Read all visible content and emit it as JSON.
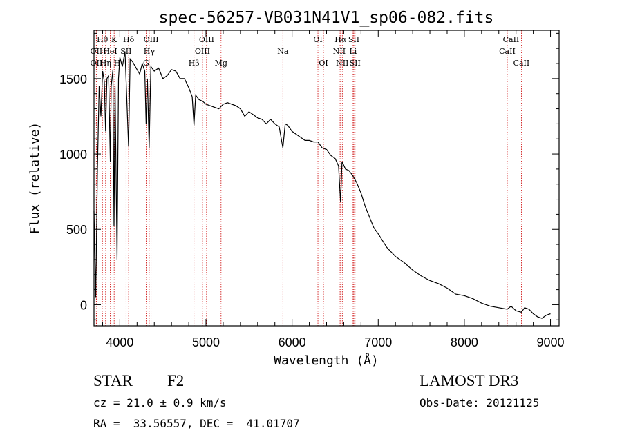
{
  "chart_data": {
    "type": "line",
    "title": "spec-56257-VB031N41V1_sp06-082.fits",
    "xlabel": "Wavelength (Å)",
    "ylabel": "Flux (relative)",
    "xlim": [
      3700,
      9100
    ],
    "ylim": [
      -140,
      1820
    ],
    "xticks": [
      4000,
      5000,
      6000,
      7000,
      8000,
      9000
    ],
    "yticks": [
      0,
      500,
      1000,
      1500
    ],
    "grid": false,
    "series": [
      {
        "name": "spectrum",
        "x": [
          3700,
          3720,
          3740,
          3760,
          3780,
          3800,
          3820,
          3835,
          3850,
          3870,
          3889,
          3900,
          3920,
          3933,
          3945,
          3968,
          3985,
          4000,
          4030,
          4060,
          4101,
          4120,
          4150,
          4180,
          4200,
          4230,
          4260,
          4290,
          4305,
          4320,
          4340,
          4360,
          4400,
          4450,
          4500,
          4550,
          4600,
          4650,
          4700,
          4750,
          4800,
          4840,
          4861,
          4880,
          4920,
          4960,
          5000,
          5050,
          5100,
          5150,
          5200,
          5250,
          5300,
          5350,
          5400,
          5450,
          5500,
          5550,
          5600,
          5650,
          5700,
          5750,
          5800,
          5850,
          5893,
          5920,
          5950,
          6000,
          6050,
          6100,
          6150,
          6200,
          6250,
          6300,
          6350,
          6400,
          6450,
          6500,
          6540,
          6563,
          6580,
          6620,
          6660,
          6700,
          6750,
          6800,
          6850,
          6900,
          6950,
          7000,
          7100,
          7200,
          7300,
          7400,
          7500,
          7600,
          7700,
          7800,
          7900,
          8000,
          8100,
          8200,
          8300,
          8400,
          8498,
          8542,
          8600,
          8662,
          8700,
          8750,
          8800,
          8850,
          8900,
          8950,
          9000
        ],
        "values": [
          620,
          50,
          900,
          1450,
          1250,
          1550,
          1480,
          1150,
          1500,
          1520,
          950,
          1450,
          1560,
          520,
          1450,
          300,
          1500,
          1640,
          1580,
          1680,
          1050,
          1630,
          1610,
          1580,
          1560,
          1530,
          1600,
          1550,
          1200,
          1500,
          1040,
          1580,
          1550,
          1570,
          1500,
          1520,
          1560,
          1550,
          1500,
          1500,
          1440,
          1380,
          1190,
          1390,
          1360,
          1350,
          1330,
          1320,
          1310,
          1300,
          1330,
          1340,
          1330,
          1320,
          1300,
          1250,
          1280,
          1260,
          1240,
          1230,
          1200,
          1230,
          1200,
          1180,
          1040,
          1200,
          1190,
          1150,
          1130,
          1110,
          1090,
          1090,
          1080,
          1080,
          1040,
          1030,
          990,
          970,
          920,
          680,
          950,
          900,
          890,
          860,
          810,
          740,
          650,
          580,
          510,
          470,
          380,
          320,
          280,
          230,
          190,
          160,
          140,
          110,
          70,
          60,
          40,
          10,
          -10,
          -20,
          -30,
          -10,
          -40,
          -50,
          -20,
          -30,
          -60,
          -80,
          -90,
          -70,
          -60
        ]
      }
    ],
    "spectral_lines": [
      {
        "label": "Hθ",
        "wavelength": 3798,
        "row": 1
      },
      {
        "label": "OII",
        "wavelength": 3727,
        "row": 2
      },
      {
        "label": "OII",
        "wavelength": 3727,
        "row": 3
      },
      {
        "label": "K",
        "wavelength": 3934,
        "row": 1
      },
      {
        "label": "HeI",
        "wavelength": 3889,
        "row": 2
      },
      {
        "label": "Hη",
        "wavelength": 3835,
        "row": 3
      },
      {
        "label": "Hδ",
        "wavelength": 4102,
        "row": 1
      },
      {
        "label": "SII",
        "wavelength": 4072,
        "row": 2
      },
      {
        "label": "H",
        "wavelength": 3969,
        "row": 3
      },
      {
        "label": "OIII",
        "wavelength": 4363,
        "row": 1
      },
      {
        "label": "Hγ",
        "wavelength": 4341,
        "row": 2
      },
      {
        "label": "G",
        "wavelength": 4305,
        "row": 3
      },
      {
        "label": "OIII",
        "wavelength": 5007,
        "row": 1
      },
      {
        "label": "OIII",
        "wavelength": 4959,
        "row": 2
      },
      {
        "label": "Hβ",
        "wavelength": 4861,
        "row": 3
      },
      {
        "label": "Mg",
        "wavelength": 5175,
        "row": 3
      },
      {
        "label": "Na",
        "wavelength": 5893,
        "row": 2
      },
      {
        "label": "OI",
        "wavelength": 6300,
        "row": 1
      },
      {
        "label": "OI",
        "wavelength": 6364,
        "row": 3
      },
      {
        "label": "Hα",
        "wavelength": 6563,
        "row": 1
      },
      {
        "label": "SII",
        "wavelength": 6717,
        "row": 1
      },
      {
        "label": "NII",
        "wavelength": 6548,
        "row": 2
      },
      {
        "label": "Li",
        "wavelength": 6708,
        "row": 2
      },
      {
        "label": "NII",
        "wavelength": 6583,
        "row": 3
      },
      {
        "label": "SII",
        "wavelength": 6731,
        "row": 3
      },
      {
        "label": "CaII",
        "wavelength": 8542,
        "row": 1
      },
      {
        "label": "CaII",
        "wavelength": 8498,
        "row": 2
      },
      {
        "label": "CaII",
        "wavelength": 8662,
        "row": 3
      }
    ]
  },
  "info": {
    "object_class": "STAR",
    "subclass": "F2",
    "cz": "cz = 21.0 ± 0.9 km/s",
    "coords": "RA =  33.56557, DEC =  41.01707",
    "survey": "LAMOST DR3",
    "obs_date": "Obs-Date: 20121125"
  },
  "colors": {
    "line_marker": "#cc0000",
    "spectrum": "#000000",
    "axes": "#000000"
  }
}
